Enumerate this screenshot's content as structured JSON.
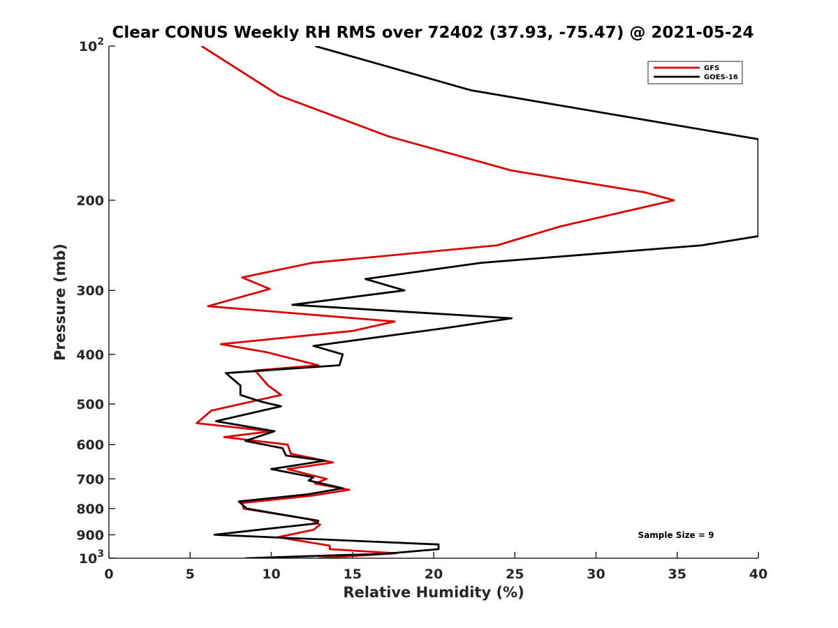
{
  "chart_data": {
    "type": "line",
    "title": "Clear CONUS Weekly RH RMS over 72402 (37.93, -75.47) @ 2021-05-24",
    "xlabel": "Relative Humidity (%)",
    "ylabel": "Pressure (mb)",
    "xlim": [
      0,
      40
    ],
    "ylim": [
      100,
      1000
    ],
    "y_scale": "log",
    "y_reversed": true,
    "grid": false,
    "x_ticks": [
      0,
      5,
      10,
      15,
      20,
      25,
      30,
      35,
      40
    ],
    "x_tick_labels": [
      "0",
      "5",
      "10",
      "15",
      "20",
      "25",
      "30",
      "35",
      "40"
    ],
    "y_ticks": [
      100,
      200,
      300,
      400,
      500,
      600,
      700,
      800,
      900,
      1000
    ],
    "y_tick_labels": [
      {
        "base": "10",
        "exp": "2"
      },
      {
        "base": "200",
        "exp": ""
      },
      {
        "base": "300",
        "exp": ""
      },
      {
        "base": "400",
        "exp": ""
      },
      {
        "base": "500",
        "exp": ""
      },
      {
        "base": "600",
        "exp": ""
      },
      {
        "base": "700",
        "exp": ""
      },
      {
        "base": "800",
        "exp": ""
      },
      {
        "base": "900",
        "exp": ""
      },
      {
        "base": "10",
        "exp": "3"
      }
    ],
    "legend_position": "top-right",
    "annotation": "Sample Size = 9",
    "series": [
      {
        "name": "GFS",
        "color": "#dd0000",
        "points": [
          [
            5.7,
            100
          ],
          [
            10.5,
            125
          ],
          [
            17.2,
            150
          ],
          [
            24.8,
            175
          ],
          [
            33.0,
            193
          ],
          [
            34.8,
            200
          ],
          [
            27.8,
            225
          ],
          [
            23.9,
            245
          ],
          [
            12.5,
            265
          ],
          [
            8.2,
            283
          ],
          [
            9.9,
            298
          ],
          [
            6.1,
            322
          ],
          [
            17.6,
            345
          ],
          [
            15.0,
            360
          ],
          [
            6.9,
            382
          ],
          [
            9.7,
            396
          ],
          [
            12.9,
            420
          ],
          [
            9.0,
            430
          ],
          [
            9.8,
            460
          ],
          [
            10.6,
            480
          ],
          [
            6.3,
            515
          ],
          [
            5.4,
            545
          ],
          [
            10.0,
            565
          ],
          [
            7.1,
            580
          ],
          [
            11.0,
            600
          ],
          [
            11.2,
            625
          ],
          [
            13.8,
            650
          ],
          [
            11.0,
            670
          ],
          [
            13.4,
            700
          ],
          [
            12.7,
            715
          ],
          [
            14.8,
            735
          ],
          [
            12.5,
            755
          ],
          [
            8.2,
            780
          ],
          [
            8.3,
            800
          ],
          [
            12.4,
            840
          ],
          [
            13.0,
            860
          ],
          [
            12.6,
            880
          ],
          [
            10.4,
            910
          ],
          [
            13.6,
            945
          ],
          [
            13.6,
            960
          ],
          [
            17.7,
            978
          ],
          [
            12.9,
            1000
          ]
        ]
      },
      {
        "name": "GOES-16",
        "color": "#000000",
        "points": [
          [
            12.7,
            100
          ],
          [
            22.3,
            122
          ],
          [
            40.0,
            152
          ],
          [
            40.0,
            235
          ],
          [
            36.5,
            245
          ],
          [
            22.9,
            265
          ],
          [
            15.8,
            285
          ],
          [
            18.2,
            300
          ],
          [
            11.3,
            320
          ],
          [
            24.8,
            340
          ],
          [
            20.8,
            355
          ],
          [
            12.6,
            385
          ],
          [
            14.4,
            400
          ],
          [
            14.2,
            420
          ],
          [
            7.2,
            435
          ],
          [
            8.1,
            460
          ],
          [
            8.1,
            480
          ],
          [
            9.4,
            495
          ],
          [
            10.6,
            505
          ],
          [
            6.6,
            540
          ],
          [
            10.2,
            565
          ],
          [
            8.4,
            590
          ],
          [
            10.7,
            610
          ],
          [
            10.9,
            630
          ],
          [
            13.3,
            645
          ],
          [
            10.0,
            670
          ],
          [
            12.6,
            695
          ],
          [
            12.3,
            705
          ],
          [
            14.4,
            730
          ],
          [
            12.3,
            750
          ],
          [
            8.0,
            775
          ],
          [
            8.5,
            800
          ],
          [
            12.9,
            845
          ],
          [
            12.8,
            855
          ],
          [
            9.2,
            880
          ],
          [
            6.5,
            900
          ],
          [
            20.3,
            940
          ],
          [
            20.3,
            960
          ],
          [
            17.0,
            980
          ],
          [
            8.4,
            1000
          ]
        ]
      }
    ]
  }
}
